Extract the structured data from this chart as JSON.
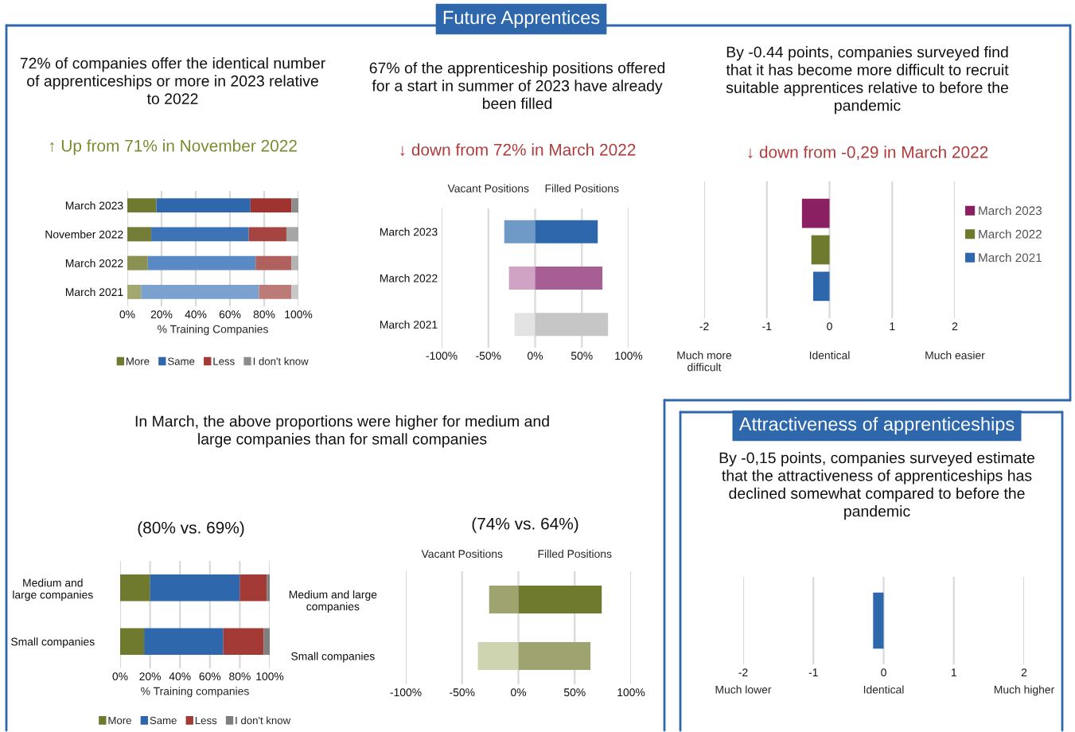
{
  "chart_data": [
    {
      "type": "bar",
      "orientation": "horizontal",
      "stacked": true,
      "title": "72% of companies offer the identical number of apprenticeships or more in 2023 relative to 2022",
      "subtitle": "↑ Up from 71% in November 2022",
      "annotations": [
        "Future Apprentices"
      ],
      "xlabel": "% Training Companies",
      "categories": [
        "March 2023",
        "November 2022",
        "March 2022",
        "March 2021"
      ],
      "series": [
        {
          "name": "More",
          "color": "#6f7a2e",
          "colors": [
            "#6f7a2e",
            "#737d35",
            "#8a9152",
            "#a2a870"
          ],
          "values": [
            17,
            14,
            12,
            8
          ]
        },
        {
          "name": "Same",
          "color": "#2e67ab",
          "colors": [
            "#2e67ab",
            "#3d72b5",
            "#5a8ac3",
            "#7ba1cf"
          ],
          "values": [
            55,
            57,
            63,
            69
          ]
        },
        {
          "name": "Less",
          "color": "#a33a36",
          "colors": [
            "#9e3330",
            "#a64441",
            "#b0605d",
            "#bd7b78"
          ],
          "values": [
            24,
            22,
            21,
            19
          ]
        },
        {
          "name": "I don't know",
          "color": "#8c8c8c",
          "colors": [
            "#8c8c8c",
            "#a6a6a6",
            "#b3b3b3",
            "#c8c8c8"
          ],
          "values": [
            4,
            7,
            4,
            4
          ]
        }
      ],
      "xlim": [
        0,
        100
      ],
      "xticks": [
        {
          "value": 0,
          "label": "0%"
        },
        {
          "value": 20,
          "label": "20%"
        },
        {
          "value": 40,
          "label": "40%"
        },
        {
          "value": 60,
          "label": "60%"
        },
        {
          "value": 80,
          "label": "80%"
        },
        {
          "value": 100,
          "label": "100%"
        }
      ],
      "grid": "x",
      "legend": "bottom"
    },
    {
      "type": "bar",
      "orientation": "horizontal",
      "stacked": true,
      "title": "67% of the apprenticeship positions offered for a start in summer of 2023 have already been filled",
      "subtitle": "↓ down from 72% in March 2022",
      "categories": [
        "March 2023",
        "March 2022",
        "March 2021"
      ],
      "series": [
        {
          "name": "Vacant Positions",
          "colors": [
            "#6f9ac8",
            "#d0a3c4",
            "#e3e3e3"
          ],
          "values": [
            -33,
            -28,
            -22
          ]
        },
        {
          "name": "Filled Positions",
          "colors": [
            "#2e67ab",
            "#a65e93",
            "#c6c6c6"
          ],
          "values": [
            67,
            72,
            78
          ]
        }
      ],
      "xlim": [
        -100,
        100
      ],
      "xticks": [
        {
          "value": -100,
          "label": "-100%"
        },
        {
          "value": -50,
          "label": "-50%"
        },
        {
          "value": 0,
          "label": "0%"
        },
        {
          "value": 50,
          "label": "50%"
        },
        {
          "value": 100,
          "label": "100%"
        }
      ],
      "grid": "x"
    },
    {
      "type": "bar",
      "orientation": "horizontal",
      "title": "By -0.44 points, companies surveyed find that it has become more difficult to recruit suitable apprentices relative to before the pandemic",
      "subtitle": "↓ down from -0,29 in March 2022",
      "categories": [
        null
      ],
      "series": [
        {
          "name": "March 2023",
          "color": "#8a1f62",
          "values": [
            -0.44
          ]
        },
        {
          "name": "March 2022",
          "color": "#6f7a2e",
          "values": [
            -0.29
          ]
        },
        {
          "name": "March 2021",
          "color": "#2e67ab",
          "values": [
            -0.26
          ]
        }
      ],
      "annotations": [
        "Much more difficult",
        "Identical",
        "Much easier"
      ],
      "xlim": [
        -2,
        2
      ],
      "xticks": [
        -2,
        -1,
        0,
        1,
        2
      ],
      "grid": "x",
      "legend": "right"
    },
    {
      "type": "bar",
      "orientation": "horizontal",
      "stacked": true,
      "title": "In March, the above proportions were higher for medium and large companies than for small companies",
      "subtitle": "(80% vs. 69%)",
      "xlabel": "% Training companies",
      "categories": [
        "Medium and large companies",
        "Small companies"
      ],
      "series": [
        {
          "name": "More",
          "color": "#6f7a2e",
          "values": [
            20,
            16
          ]
        },
        {
          "name": "Same",
          "color": "#2e67ab",
          "values": [
            60,
            53
          ]
        },
        {
          "name": "Less",
          "color": "#a33a36",
          "values": [
            18,
            27
          ]
        },
        {
          "name": "I don't know",
          "color": "#7f7f7f",
          "values": [
            2,
            4
          ]
        }
      ],
      "xlim": [
        0,
        100
      ],
      "xticks": [
        {
          "value": 0,
          "label": "0%"
        },
        {
          "value": 20,
          "label": "20%"
        },
        {
          "value": 40,
          "label": "40%"
        },
        {
          "value": 60,
          "label": "60%"
        },
        {
          "value": 80,
          "label": "80%"
        },
        {
          "value": 100,
          "label": "100%"
        }
      ],
      "grid": "x",
      "legend": "bottom"
    },
    {
      "type": "bar",
      "orientation": "horizontal",
      "stacked": true,
      "subtitle": "(74% vs. 64%)",
      "categories": [
        "Medium and large companies",
        "Small companies"
      ],
      "series": [
        {
          "name": "Vacant Positions",
          "colors": [
            "#9ea36f",
            "#ced3b0"
          ],
          "values": [
            -26,
            -36
          ]
        },
        {
          "name": "Filled Positions",
          "colors": [
            "#6f7a2e",
            "#9ea36f"
          ],
          "values": [
            74,
            64
          ]
        }
      ],
      "xlim": [
        -100,
        100
      ],
      "xticks": [
        {
          "value": -100,
          "label": "-100%"
        },
        {
          "value": -50,
          "label": "-50%"
        },
        {
          "value": 0,
          "label": "0%"
        },
        {
          "value": 50,
          "label": "50%"
        },
        {
          "value": 100,
          "label": "100%"
        }
      ],
      "grid": "x"
    },
    {
      "type": "bar",
      "orientation": "horizontal",
      "title": "By -0,15 points, companies surveyed estimate that the attractiveness of apprenticeships has declined somewhat compared to before the pandemic",
      "annotations": [
        "Attractiveness of apprenticeships",
        "Much lower",
        "Identical",
        "Much higher"
      ],
      "categories": [
        null
      ],
      "series": [
        {
          "color": "#2e67ab",
          "values": [
            -0.15
          ]
        }
      ],
      "xlim": [
        -2,
        2
      ],
      "xticks": [
        -2,
        -1,
        0,
        1,
        2
      ],
      "grid": "x"
    }
  ]
}
